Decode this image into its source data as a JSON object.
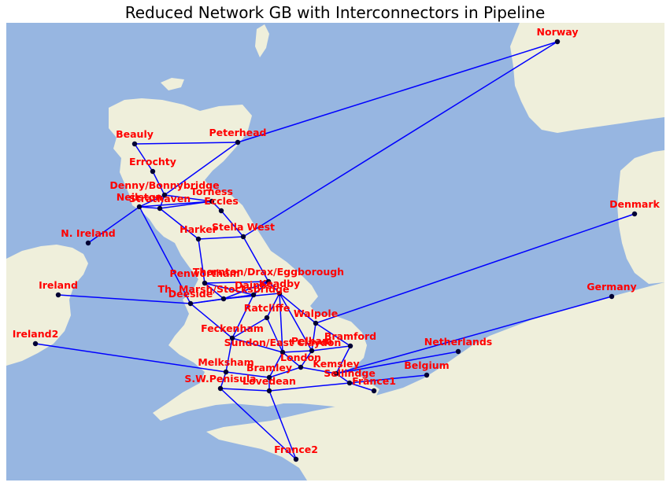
{
  "title": "Reduced Network GB with Interconnectors in Pipeline",
  "colors": {
    "sea": "#97b6e1",
    "land": "#efefdb",
    "edge": "#0000ff",
    "node": "#000033",
    "label": "#ff0000"
  },
  "nodes": [
    {
      "id": "norway",
      "label": "Norway"
    },
    {
      "id": "beauly",
      "label": "Beauly"
    },
    {
      "id": "peterhead",
      "label": "Peterhead"
    },
    {
      "id": "errochty",
      "label": "Errochty"
    },
    {
      "id": "denny",
      "label": "Denny/Bonnybridge"
    },
    {
      "id": "torness",
      "label": "Torness"
    },
    {
      "id": "neilston",
      "label": "Neilston"
    },
    {
      "id": "strathaven",
      "label": "Strathaven"
    },
    {
      "id": "eccles",
      "label": "Eccles"
    },
    {
      "id": "denmark",
      "label": "Denmark"
    },
    {
      "id": "nireland",
      "label": "N. Ireland"
    },
    {
      "id": "harker",
      "label": "Harker"
    },
    {
      "id": "stellawest",
      "label": "Stella West"
    },
    {
      "id": "thornton",
      "label": "Thornton/Drax/Eggborough"
    },
    {
      "id": "penwortham",
      "label": "Penwortham"
    },
    {
      "id": "thmarsh",
      "label": "Th. Marsh/Stocksbridge"
    },
    {
      "id": "keadby",
      "label": "Keadby"
    },
    {
      "id": "daines",
      "label": "Daines"
    },
    {
      "id": "deeside",
      "label": "Deeside"
    },
    {
      "id": "ireland",
      "label": "Ireland"
    },
    {
      "id": "germany",
      "label": "Germany"
    },
    {
      "id": "ratcliffe",
      "label": "Ratcliffe"
    },
    {
      "id": "walpole",
      "label": "Walpole"
    },
    {
      "id": "feckenham",
      "label": "Feckenham"
    },
    {
      "id": "bramford",
      "label": "Bramford"
    },
    {
      "id": "sundon",
      "label": "Sundon/East Claydon"
    },
    {
      "id": "pelham",
      "label": "Pelham"
    },
    {
      "id": "ireland2",
      "label": "Ireland2"
    },
    {
      "id": "netherlands",
      "label": "Netherlands"
    },
    {
      "id": "london",
      "label": "London"
    },
    {
      "id": "melksham",
      "label": "Melksham"
    },
    {
      "id": "kemsley",
      "label": "Kemsley"
    },
    {
      "id": "bramley",
      "label": "Bramley"
    },
    {
      "id": "belgium",
      "label": "Belgium"
    },
    {
      "id": "sellindge",
      "label": "Sellindge"
    },
    {
      "id": "swpenisula",
      "label": "S.W.Penisula"
    },
    {
      "id": "france1",
      "label": "France1"
    },
    {
      "id": "lovedean",
      "label": "Lovedean"
    },
    {
      "id": "france2",
      "label": "France2"
    }
  ],
  "links": [
    [
      "beauly",
      "peterhead"
    ],
    [
      "beauly",
      "errochty"
    ],
    [
      "errochty",
      "denny"
    ],
    [
      "peterhead",
      "denny"
    ],
    [
      "peterhead",
      "norway"
    ],
    [
      "denny",
      "neilston"
    ],
    [
      "denny",
      "strathaven"
    ],
    [
      "denny",
      "torness"
    ],
    [
      "neilston",
      "strathaven"
    ],
    [
      "strathaven",
      "torness"
    ],
    [
      "torness",
      "eccles"
    ],
    [
      "neilston",
      "torness"
    ],
    [
      "neilston",
      "nireland"
    ],
    [
      "neilston",
      "deeside"
    ],
    [
      "strathaven",
      "harker"
    ],
    [
      "eccles",
      "stellawest"
    ],
    [
      "harker",
      "stellawest"
    ],
    [
      "stellawest",
      "norway"
    ],
    [
      "harker",
      "penwortham"
    ],
    [
      "stellawest",
      "thornton"
    ],
    [
      "penwortham",
      "thornton"
    ],
    [
      "penwortham",
      "thmarsh"
    ],
    [
      "penwortham",
      "daines"
    ],
    [
      "thornton",
      "keadby"
    ],
    [
      "thornton",
      "thmarsh"
    ],
    [
      "thornton",
      "daines"
    ],
    [
      "thmarsh",
      "keadby"
    ],
    [
      "daines",
      "thmarsh"
    ],
    [
      "daines",
      "deeside"
    ],
    [
      "deeside",
      "thmarsh"
    ],
    [
      "deeside",
      "ireland"
    ],
    [
      "deeside",
      "feckenham"
    ],
    [
      "daines",
      "feckenham"
    ],
    [
      "keadby",
      "ratcliffe"
    ],
    [
      "keadby",
      "walpole"
    ],
    [
      "keadby",
      "pelham"
    ],
    [
      "keadby",
      "sundon"
    ],
    [
      "ratcliffe",
      "feckenham"
    ],
    [
      "ratcliffe",
      "sundon"
    ],
    [
      "walpole",
      "pelham"
    ],
    [
      "walpole",
      "bramford"
    ],
    [
      "walpole",
      "denmark"
    ],
    [
      "feckenham",
      "sundon"
    ],
    [
      "feckenham",
      "melksham"
    ],
    [
      "sundon",
      "pelham"
    ],
    [
      "sundon",
      "london"
    ],
    [
      "sundon",
      "bramley"
    ],
    [
      "pelham",
      "bramford"
    ],
    [
      "pelham",
      "london"
    ],
    [
      "bramford",
      "kemsley"
    ],
    [
      "london",
      "kemsley"
    ],
    [
      "london",
      "bramley"
    ],
    [
      "kemsley",
      "sellindge"
    ],
    [
      "kemsley",
      "netherlands"
    ],
    [
      "kemsley",
      "germany"
    ],
    [
      "melksham",
      "bramley"
    ],
    [
      "melksham",
      "swpenisula"
    ],
    [
      "melksham",
      "ireland2"
    ],
    [
      "bramley",
      "lovedean"
    ],
    [
      "swpenisula",
      "lovedean"
    ],
    [
      "swpenisula",
      "france2"
    ],
    [
      "lovedean",
      "france2"
    ],
    [
      "lovedean",
      "sellindge"
    ],
    [
      "sellindge",
      "france1"
    ],
    [
      "sellindge",
      "belgium"
    ]
  ]
}
